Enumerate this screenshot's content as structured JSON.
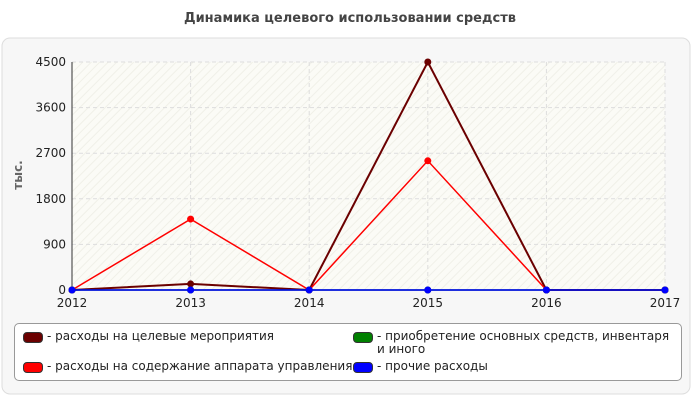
{
  "chart_data": {
    "type": "line",
    "title": "Динамика целевого использовании средств",
    "y_label": "тыс.",
    "x": [
      2012,
      2013,
      2014,
      2015,
      2016,
      2017
    ],
    "xlim": [
      2012,
      2017
    ],
    "xticks": [
      2012,
      2013,
      2014,
      2015,
      2016,
      2017
    ],
    "ylim": [
      0,
      4500
    ],
    "yticks": [
      0,
      900,
      1800,
      2700,
      3600,
      4500
    ],
    "grid": true,
    "series": [
      {
        "name": "- расходы на целевые мероприятия",
        "color": "#6b0000",
        "values": [
          0,
          120,
          0,
          4500,
          0,
          0
        ]
      },
      {
        "name": "- расходы на содержание аппарата управления",
        "color": "#ff0000",
        "values": [
          0,
          1400,
          0,
          2550,
          0,
          0
        ]
      },
      {
        "name": "- приобретение основных средств, инвентаря и иного",
        "color": "#008000",
        "values": [
          0,
          0,
          0,
          0,
          0,
          0
        ]
      },
      {
        "name": "- прочие расходы",
        "color": "#0000ff",
        "values": [
          0,
          0,
          0,
          0,
          0,
          0
        ]
      }
    ]
  }
}
